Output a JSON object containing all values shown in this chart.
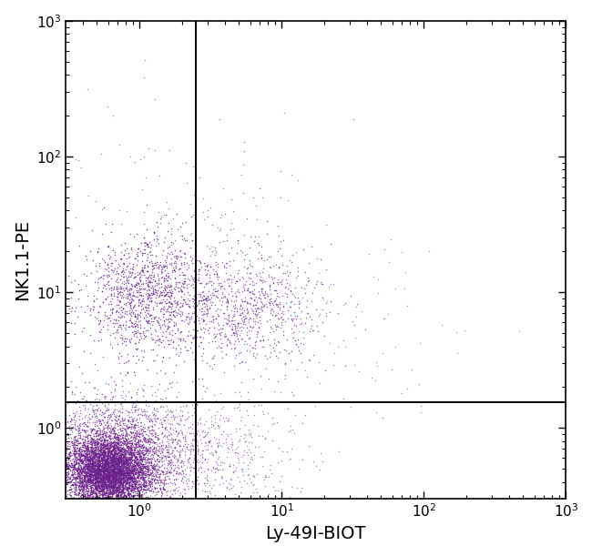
{
  "title": "",
  "xlabel": "Ly-49I-BIOT",
  "ylabel": "NK1.1-PE",
  "xlim_log": [
    -0.52,
    3.0
  ],
  "ylim_log": [
    -0.52,
    3.0
  ],
  "dot_color": "#6B1F8B",
  "dot_alpha": 0.75,
  "dot_size": 1.2,
  "gate_x": 2.5,
  "gate_y": 1.55,
  "seed": 42,
  "clusters": [
    {
      "name": "main_dense_core",
      "n": 5000,
      "log_x_mean": -0.22,
      "log_x_std": 0.15,
      "log_y_mean": -0.32,
      "log_y_std": 0.13,
      "alpha": 0.85
    },
    {
      "name": "main_spread",
      "n": 2500,
      "log_x_mean": -0.15,
      "log_x_std": 0.28,
      "log_y_mean": -0.2,
      "log_y_std": 0.22,
      "alpha": 0.6
    },
    {
      "name": "nk_left",
      "n": 1200,
      "log_x_mean": 0.05,
      "log_x_std": 0.22,
      "log_y_mean": 0.97,
      "log_y_std": 0.22,
      "alpha": 0.75
    },
    {
      "name": "nk_right",
      "n": 900,
      "log_x_mean": 0.72,
      "log_x_std": 0.28,
      "log_y_mean": 0.9,
      "log_y_std": 0.22,
      "alpha": 0.65
    },
    {
      "name": "scatter_noise_upper",
      "n": 120,
      "log_x_mean": 0.3,
      "log_x_std": 0.5,
      "log_y_mean": 1.6,
      "log_y_std": 0.4,
      "alpha": 0.5
    },
    {
      "name": "scatter_right_spread",
      "n": 80,
      "log_x_mean": 1.5,
      "log_x_std": 0.4,
      "log_y_mean": 0.7,
      "log_y_std": 0.35,
      "alpha": 0.45
    },
    {
      "name": "below_gate_right",
      "n": 600,
      "log_x_mean": 0.45,
      "log_x_std": 0.35,
      "log_y_mean": -0.18,
      "log_y_std": 0.22,
      "alpha": 0.5
    }
  ],
  "background_color": "#FFFFFF",
  "axis_color": "#000000",
  "label_fontsize": 14,
  "tick_fontsize": 11
}
